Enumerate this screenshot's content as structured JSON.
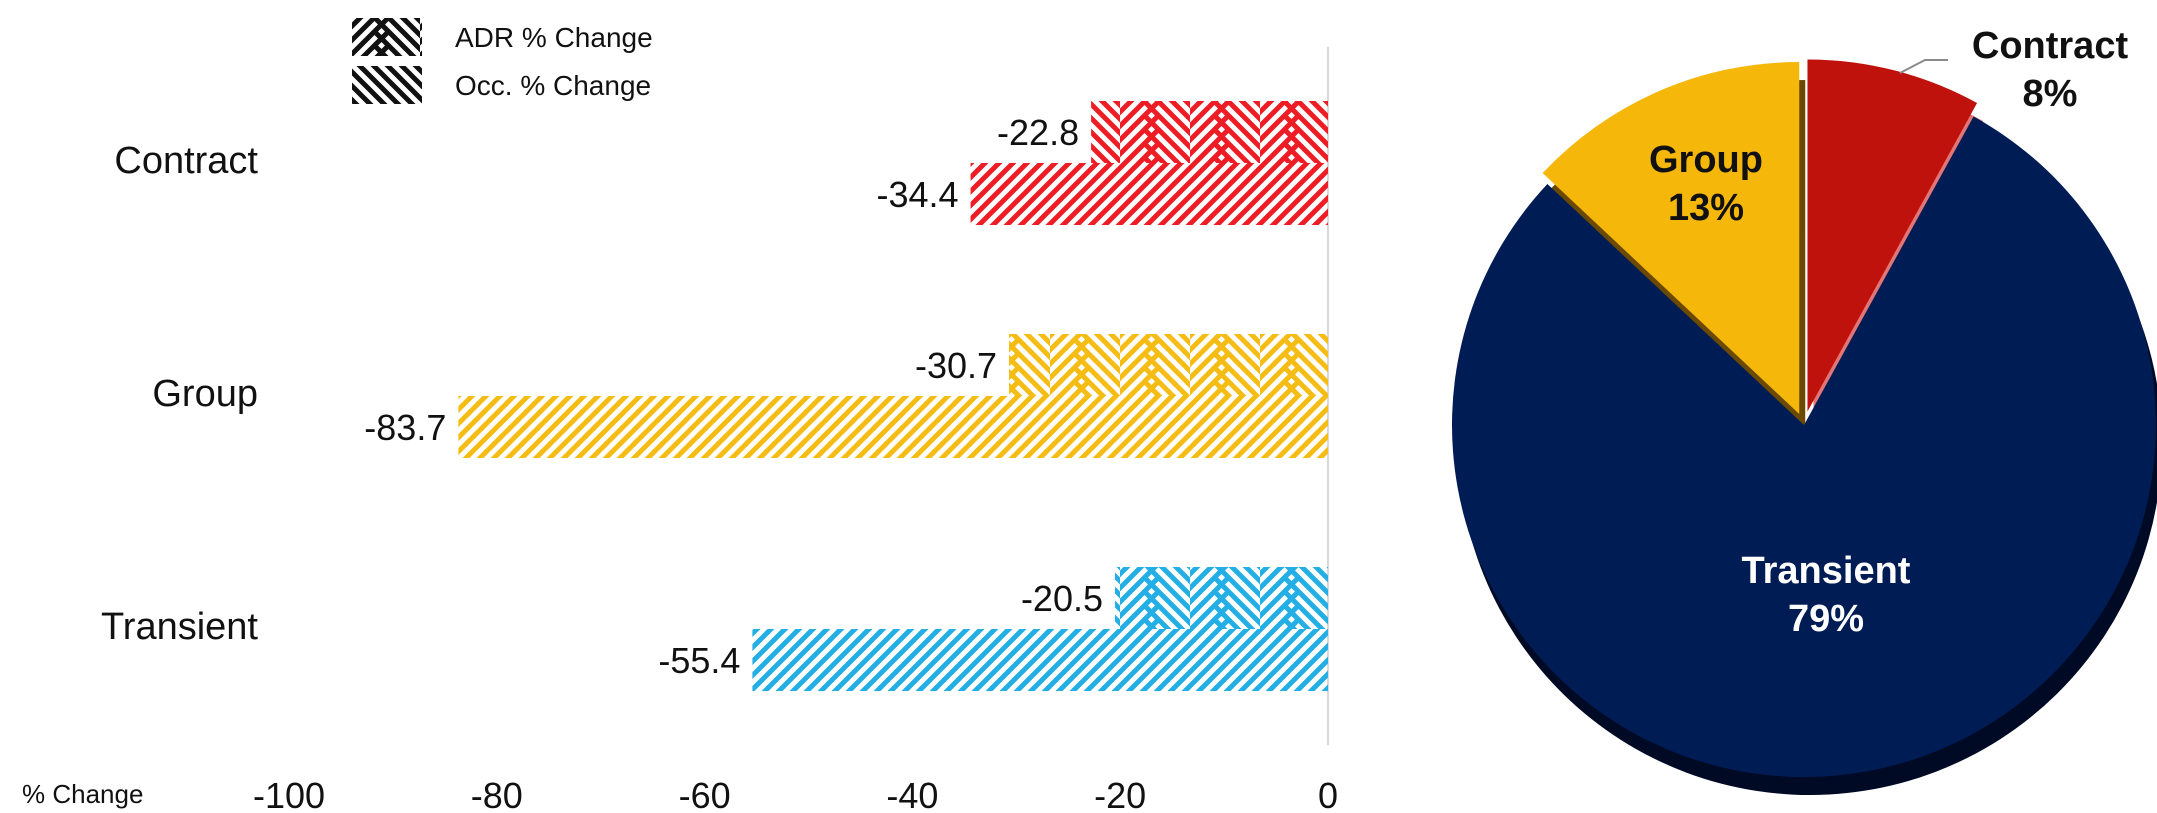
{
  "chart_data": [
    {
      "type": "bar",
      "orientation": "horizontal",
      "categories": [
        "Contract",
        "Group",
        "Transient"
      ],
      "series": [
        {
          "name": "ADR % Change",
          "values": [
            -22.8,
            -30.7,
            -20.5
          ]
        },
        {
          "name": "Occ. % Change",
          "values": [
            -34.4,
            -83.7,
            -55.4
          ]
        }
      ],
      "category_colors": {
        "Contract": "#ee1c25",
        "Group": "#f5bd14",
        "Transient": "#23aee5"
      },
      "xlabel": "% Change",
      "xlim": [
        -100,
        0
      ],
      "xticks": [
        -100,
        -80,
        -60,
        -40,
        -20,
        0
      ],
      "data_labels": {
        "Contract": [
          "-22.8",
          "-34.4"
        ],
        "Group": [
          "-30.7",
          "-83.7"
        ],
        "Transient": [
          "-20.5",
          "-55.4"
        ]
      },
      "legend": {
        "placement": "top-left",
        "entries": [
          {
            "label": "ADR % Change",
            "pattern": "chevron"
          },
          {
            "label": "Occ. % Change",
            "pattern": "diagonal-back"
          }
        ]
      },
      "grid": false
    },
    {
      "type": "pie",
      "slices": [
        {
          "label": "Transient",
          "value": 79,
          "text": "79%",
          "color": "#001c55",
          "side": "#000a25"
        },
        {
          "label": "Group",
          "value": 13,
          "text": "13%",
          "color": "#f5b80a",
          "side": "#6b4a00"
        },
        {
          "label": "Contract",
          "value": 8,
          "text": "8%",
          "color": "#c0120d",
          "side": "#e27575"
        }
      ]
    }
  ]
}
